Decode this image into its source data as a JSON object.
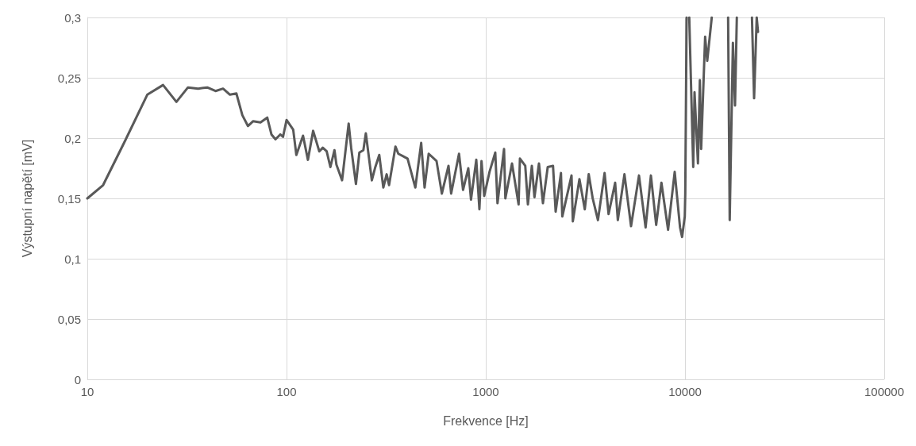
{
  "chart_data": {
    "type": "line",
    "xlabel": "Frekvence [Hz]",
    "ylabel": "Výstupní napětí [mV]",
    "log": "x",
    "grid": true,
    "marker": "none",
    "line_style": "solid",
    "xlim": [
      10,
      100000
    ],
    "xticks": [
      10,
      100,
      1000,
      10000,
      100000
    ],
    "ylim": [
      0,
      0.3
    ],
    "yticks": [
      {
        "value": 0,
        "label": "0"
      },
      {
        "value": 0.05,
        "label": "0,05"
      },
      {
        "value": 0.1,
        "label": "0,1"
      },
      {
        "value": 0.15,
        "label": "0,15"
      },
      {
        "value": 0.2,
        "label": "0,2"
      },
      {
        "value": 0.25,
        "label": "0,25"
      },
      {
        "value": 0.3,
        "label": "0,3"
      }
    ],
    "series": [
      {
        "color": "#595959",
        "x": [
          10,
          12,
          15.5,
          20,
          24,
          28,
          32,
          36,
          40,
          44,
          48,
          52,
          56,
          60,
          64,
          68,
          74,
          80,
          84,
          88,
          93,
          96,
          100,
          108,
          112,
          121,
          128,
          136,
          146,
          152,
          159,
          166,
          174,
          178,
          190,
          205,
          211,
          223,
          232,
          243,
          250,
          268,
          279,
          292,
          306,
          318,
          327,
          337,
          352,
          364,
          405,
          443,
          474,
          493,
          517,
          566,
          602,
          650,
          670,
          734,
          769,
          817,
          843,
          896,
          929,
          952,
          982,
          1044,
          1116,
          1145,
          1235,
          1254,
          1354,
          1461,
          1484,
          1578,
          1627,
          1703,
          1755,
          1849,
          1936,
          2046,
          2175,
          2242,
          2384,
          2421,
          2694,
          2735,
          2952,
          3140,
          3286,
          3441,
          3656,
          3948,
          4134,
          4460,
          4600,
          4966,
          5359,
          5875,
          6341,
          6742,
          7166,
          7614,
          8222,
          8876,
          9439,
          9668,
          9973,
          10030,
          10186,
          10300,
          10502,
          10995,
          11163,
          11614,
          11872,
          12050,
          12617,
          12930,
          13620,
          15000,
          16455,
          16762,
          17393,
          17822,
          18198,
          20000,
          21677,
          22218,
          22900,
          23250
        ],
        "values": [
          0.15,
          0.161,
          0.198,
          0.236,
          0.244,
          0.23,
          0.242,
          0.241,
          0.242,
          0.239,
          0.241,
          0.236,
          0.237,
          0.219,
          0.21,
          0.214,
          0.213,
          0.217,
          0.203,
          0.199,
          0.203,
          0.201,
          0.215,
          0.207,
          0.186,
          0.202,
          0.182,
          0.206,
          0.189,
          0.192,
          0.189,
          0.176,
          0.19,
          0.178,
          0.165,
          0.212,
          0.192,
          0.162,
          0.188,
          0.19,
          0.204,
          0.165,
          0.176,
          0.186,
          0.159,
          0.17,
          0.161,
          0.174,
          0.193,
          0.187,
          0.183,
          0.159,
          0.196,
          0.159,
          0.187,
          0.181,
          0.154,
          0.177,
          0.154,
          0.187,
          0.157,
          0.175,
          0.149,
          0.182,
          0.141,
          0.181,
          0.152,
          0.172,
          0.188,
          0.146,
          0.191,
          0.15,
          0.179,
          0.145,
          0.183,
          0.177,
          0.145,
          0.177,
          0.151,
          0.179,
          0.146,
          0.176,
          0.177,
          0.139,
          0.171,
          0.135,
          0.169,
          0.131,
          0.166,
          0.141,
          0.17,
          0.15,
          0.132,
          0.171,
          0.137,
          0.163,
          0.132,
          0.17,
          0.127,
          0.169,
          0.126,
          0.169,
          0.128,
          0.163,
          0.124,
          0.172,
          0.126,
          0.118,
          0.135,
          0.154,
          0.3,
          null,
          0.3,
          0.176,
          0.238,
          0.179,
          0.248,
          0.191,
          0.284,
          0.264,
          0.3,
          null,
          0.3,
          0.132,
          0.279,
          0.227,
          0.3,
          null,
          0.3,
          0.233,
          0.3,
          0.288
        ]
      }
    ]
  }
}
